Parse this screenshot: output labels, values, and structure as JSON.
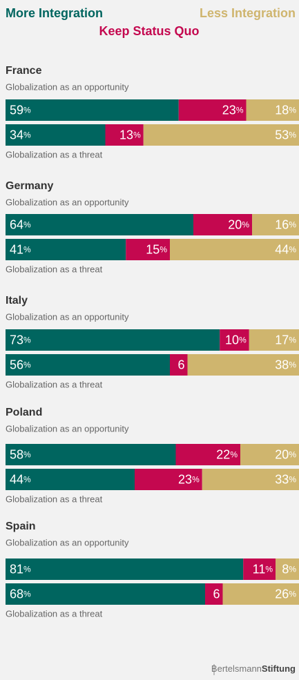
{
  "chart_data": {
    "type": "stacked_bar",
    "groups": [
      "France",
      "Germany",
      "Italy",
      "Poland",
      "Spain"
    ],
    "categories": [
      "Globalization as an opportunity",
      "Globalization as a threat",
      "Globalization as an opportunity",
      "Globalization as a threat",
      "Globalization as an opportunity",
      "Globalization as a threat",
      "Globalization as an opportunity",
      "Globalization as a threat",
      "Globalization as an opportunity",
      "Globalization as a threat"
    ],
    "series": [
      {
        "name": "More Integration",
        "color": "#00655f",
        "values": [
          59,
          34,
          64,
          41,
          73,
          56,
          58,
          44,
          81,
          68
        ],
        "value_labels": [
          "59%",
          "34%",
          "64%",
          "41%",
          "73%",
          "56%",
          "58%",
          "44%",
          "81%",
          "68%"
        ]
      },
      {
        "name": "Keep Status Quo",
        "color": "#c4084f",
        "values": [
          23,
          13,
          20,
          15,
          10,
          6,
          22,
          23,
          11,
          6
        ],
        "value_labels": [
          "23%",
          "13%",
          "20%",
          "15%",
          "10%",
          "6",
          "22%",
          "23%",
          "11%",
          "6"
        ]
      },
      {
        "name": "Less Integration",
        "color": "#cfb56e",
        "values": [
          18,
          53,
          16,
          44,
          17,
          38,
          20,
          33,
          8,
          26
        ],
        "value_labels": [
          "18%",
          "53%",
          "16%",
          "44%",
          "17%",
          "38%",
          "20%",
          "33%",
          "8%",
          "26%"
        ]
      }
    ],
    "xlim": [
      0,
      100
    ],
    "source": {
      "light": "Bertelsmann",
      "bold": "Stiftung"
    }
  }
}
